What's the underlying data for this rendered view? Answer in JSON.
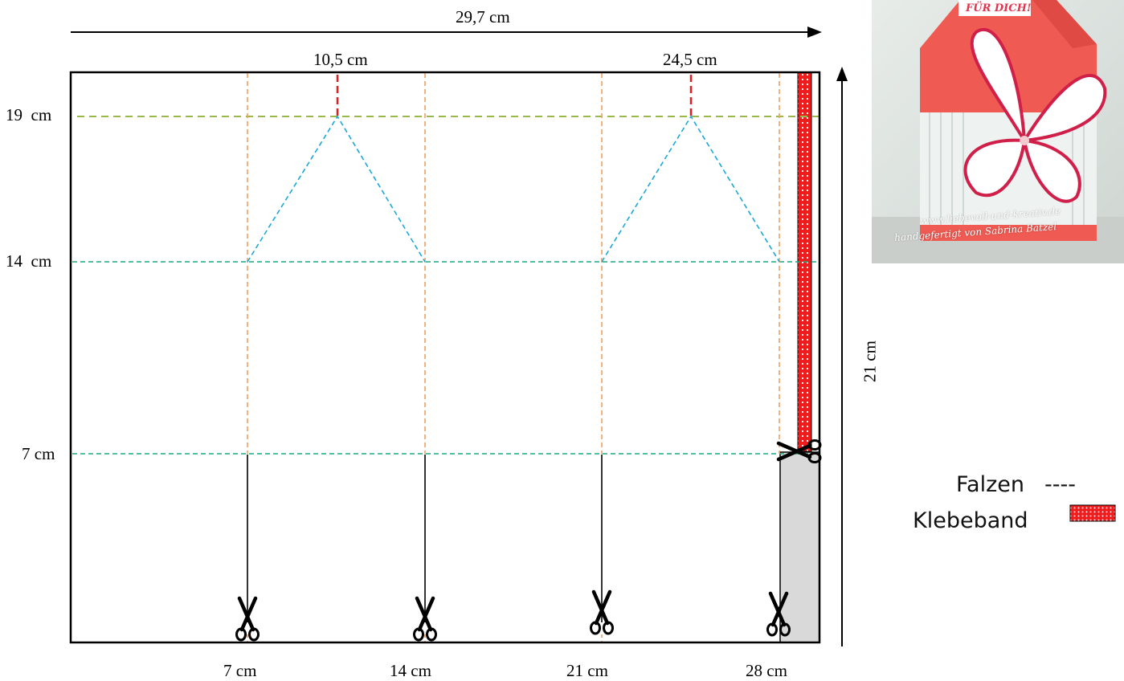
{
  "dimensions": {
    "width": "29,7 cm",
    "height": "21 cm"
  },
  "top_marks": [
    "10,5 cm",
    "24,5 cm"
  ],
  "left_marks": [
    "19  cm",
    "14  cm",
    "7 cm"
  ],
  "bottom_marks": [
    "7 cm",
    "14 cm",
    "21 cm",
    "28 cm"
  ],
  "legend": {
    "fold_label": "Falzen",
    "fold_symbol": "----",
    "tape_label": "Klebeband"
  },
  "photo": {
    "banner": "FÜR DICH!",
    "watermark_line1": "www.liebevoll-und-kreativ.de",
    "watermark_line2": "handgefertigt von Sabrina Batzel"
  },
  "colors": {
    "fold_vertical": "#f0a060",
    "fold_top": "#9ab84a",
    "fold_horizontal": "#1aaa80",
    "roof_lines": "#1aa8d8",
    "center_marks": "#e02020",
    "tape": "#ee1c1c",
    "glue_flap": "#d9d9d9",
    "photo_box": "#ef5a52"
  },
  "icons": [
    "scissors-icon",
    "arrow-right-icon",
    "arrow-up-icon"
  ]
}
